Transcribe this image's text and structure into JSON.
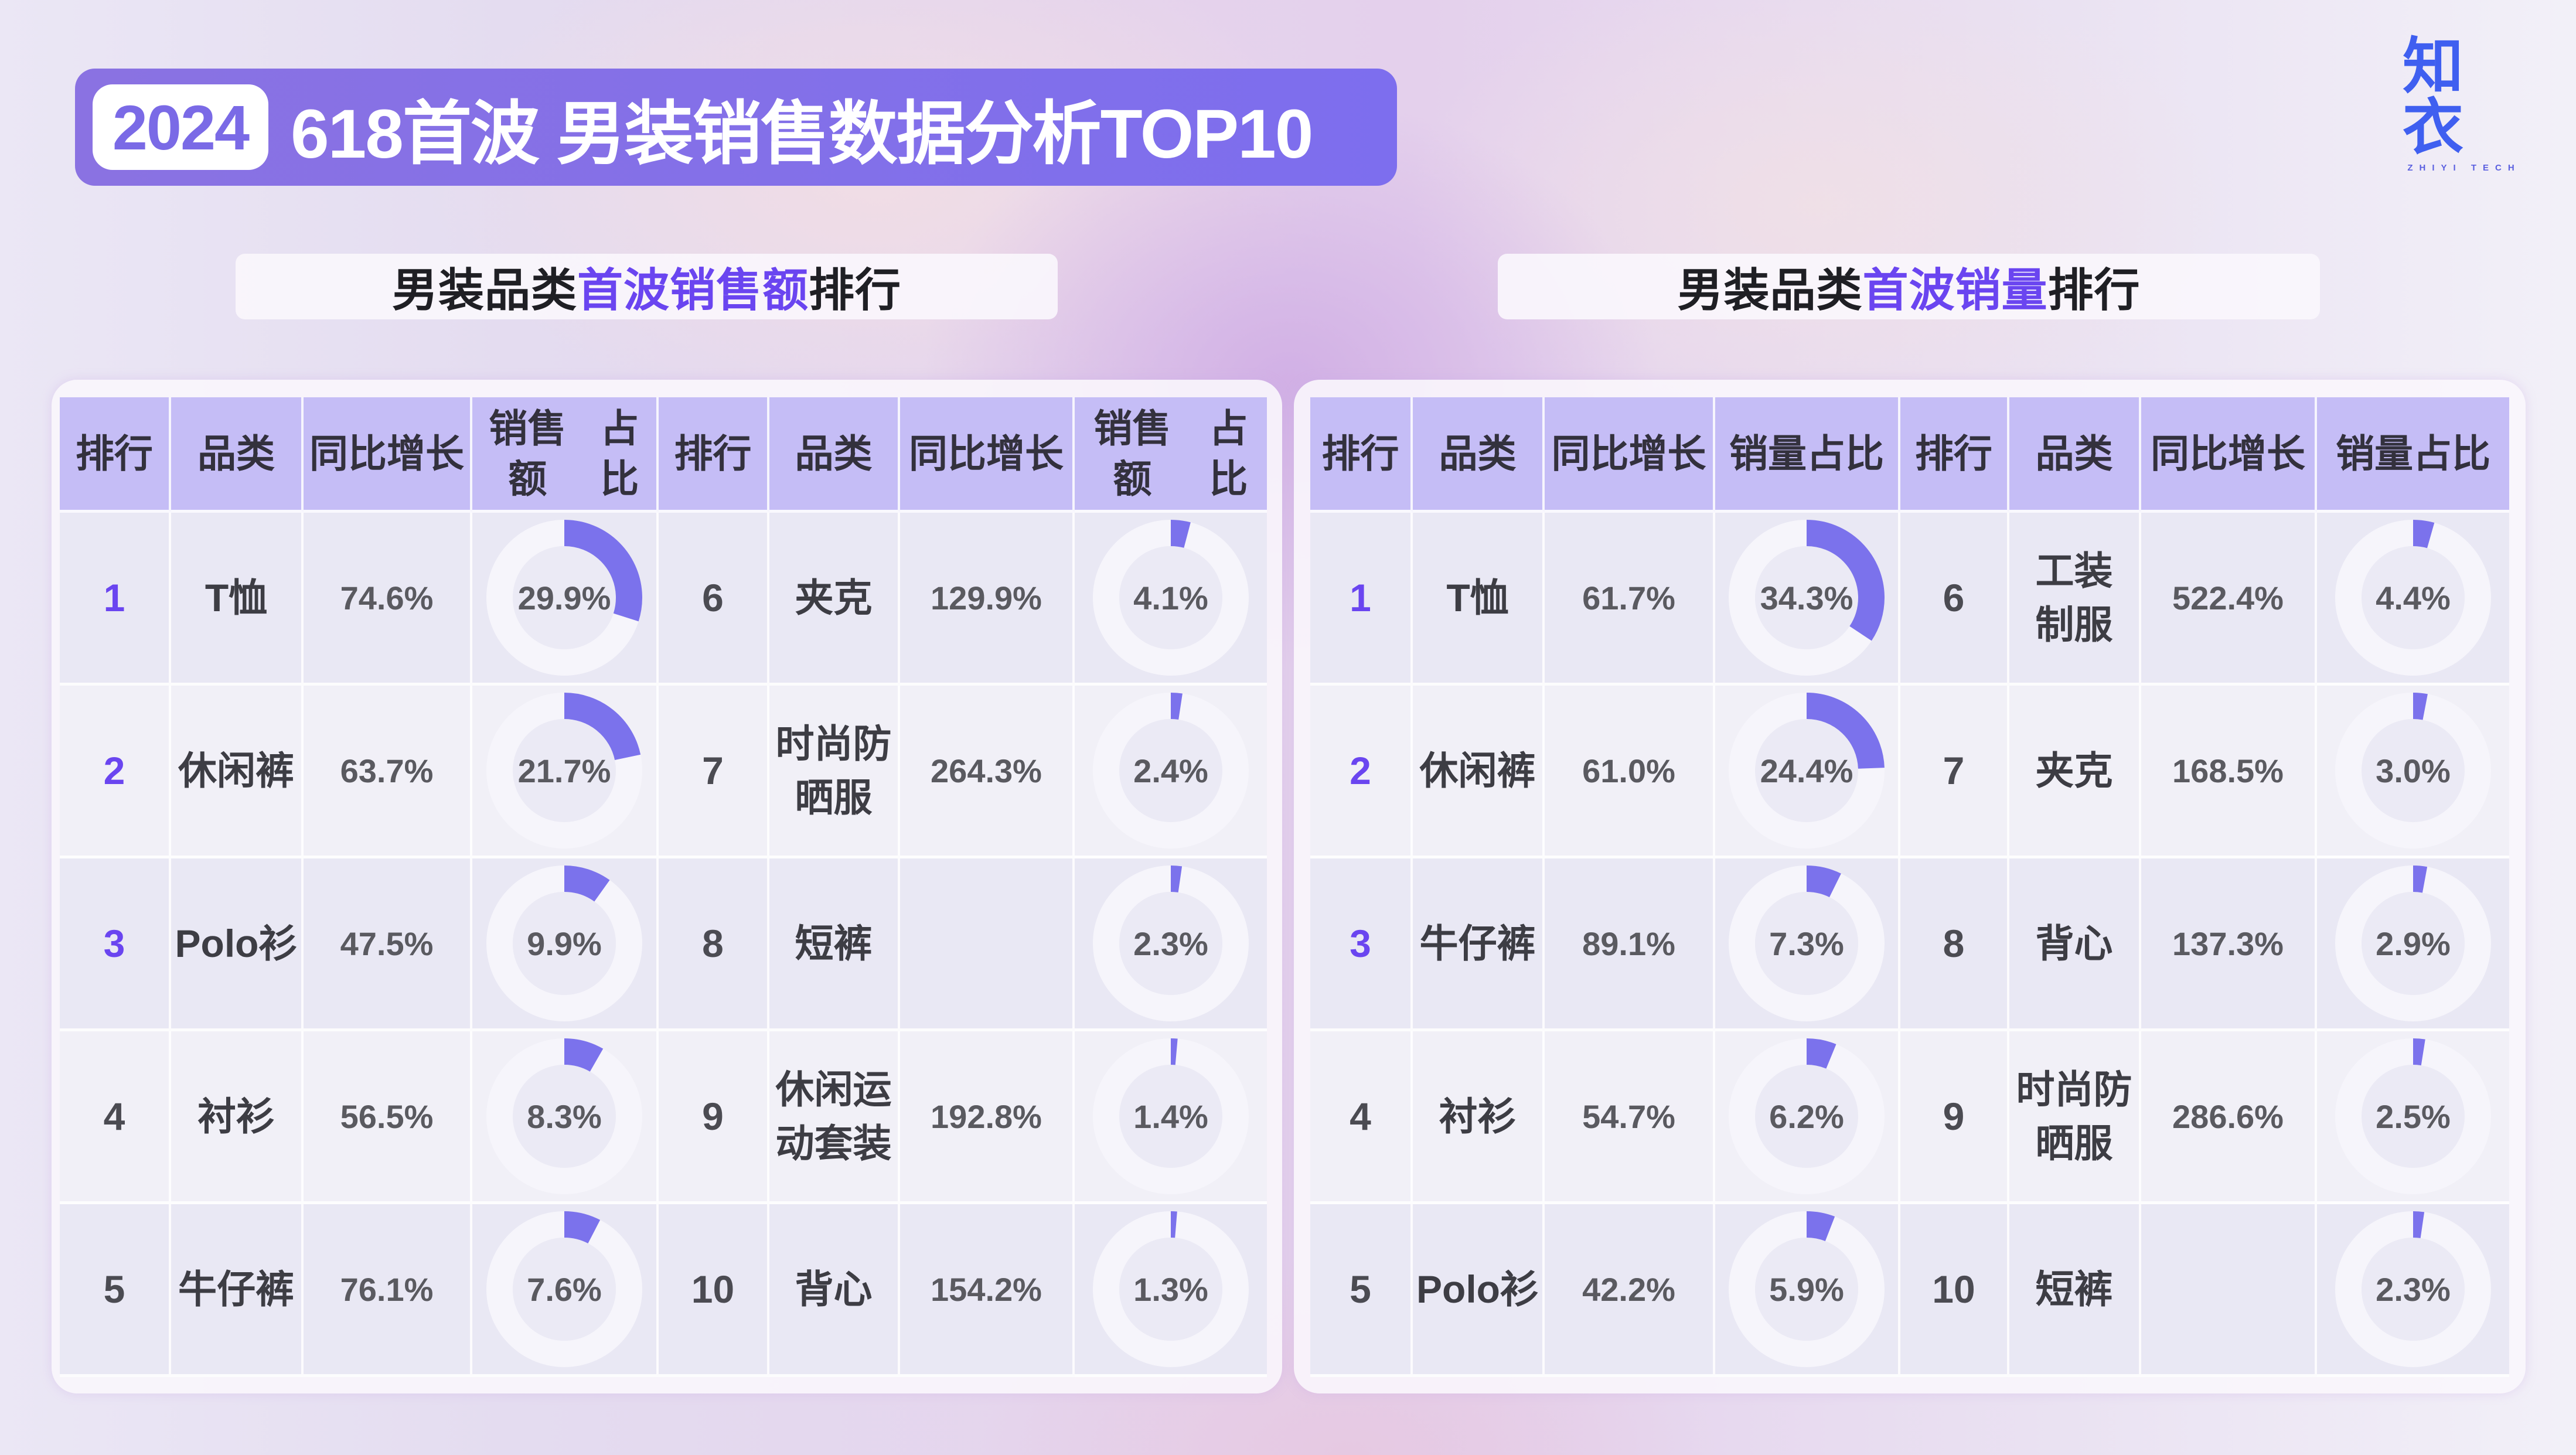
{
  "header": {
    "year_badge": "2024",
    "title": "618首波 男装销售数据分析TOP10"
  },
  "logo": {
    "mark": "知衣",
    "sub": "ZHIYI TECH"
  },
  "colors": {
    "accent": "#7d6eee",
    "highlight_text": "#6a45f0",
    "header_cell": "#c5bdf6",
    "donut_fill": "#7b72ec",
    "donut_track": "#f6f5fb",
    "logo": "#3f5ff0"
  },
  "sections": {
    "sales_amount": {
      "heading_prefix": "男装品类",
      "heading_highlight": "首波销售额",
      "heading_suffix": "排行",
      "columns": [
        "排行",
        "品类",
        "同比增长",
        "销售额占比",
        "排行",
        "品类",
        "同比增长",
        "销售额占比"
      ],
      "share_col_label_line1": "销售额",
      "share_col_label_line2": "占比",
      "rows": [
        {
          "left": {
            "rank": "1",
            "category": "T恤",
            "yoy": "74.6%",
            "share": "29.9%",
            "share_value": 29.9
          },
          "right": {
            "rank": "6",
            "category": "夹克",
            "yoy": "129.9%",
            "share": "4.1%",
            "share_value": 4.1
          }
        },
        {
          "left": {
            "rank": "2",
            "category": "休闲裤",
            "yoy": "63.7%",
            "share": "21.7%",
            "share_value": 21.7
          },
          "right": {
            "rank": "7",
            "category": "时尚防\n晒服",
            "yoy": "264.3%",
            "share": "2.4%",
            "share_value": 2.4
          }
        },
        {
          "left": {
            "rank": "3",
            "category": "Polo衫",
            "yoy": "47.5%",
            "share": "9.9%",
            "share_value": 9.9
          },
          "right": {
            "rank": "8",
            "category": "短裤",
            "yoy": "",
            "share": "2.3%",
            "share_value": 2.3
          }
        },
        {
          "left": {
            "rank": "4",
            "category": "衬衫",
            "yoy": "56.5%",
            "share": "8.3%",
            "share_value": 8.3
          },
          "right": {
            "rank": "9",
            "category": "休闲运\n动套装",
            "yoy": "192.8%",
            "share": "1.4%",
            "share_value": 1.4
          }
        },
        {
          "left": {
            "rank": "5",
            "category": "牛仔裤",
            "yoy": "76.1%",
            "share": "7.6%",
            "share_value": 7.6
          },
          "right": {
            "rank": "10",
            "category": "背心",
            "yoy": "154.2%",
            "share": "1.3%",
            "share_value": 1.3
          }
        }
      ]
    },
    "sales_volume": {
      "heading_prefix": "男装品类",
      "heading_highlight": "首波销量",
      "heading_suffix": "排行",
      "columns": [
        "排行",
        "品类",
        "同比增长",
        "销量占比",
        "排行",
        "品类",
        "同比增长",
        "销量占比"
      ],
      "rows": [
        {
          "left": {
            "rank": "1",
            "category": "T恤",
            "yoy": "61.7%",
            "share": "34.3%",
            "share_value": 34.3
          },
          "right": {
            "rank": "6",
            "category": "工装\n制服",
            "yoy": "522.4%",
            "share": "4.4%",
            "share_value": 4.4
          }
        },
        {
          "left": {
            "rank": "2",
            "category": "休闲裤",
            "yoy": "61.0%",
            "share": "24.4%",
            "share_value": 24.4
          },
          "right": {
            "rank": "7",
            "category": "夹克",
            "yoy": "168.5%",
            "share": "3.0%",
            "share_value": 3.0
          }
        },
        {
          "left": {
            "rank": "3",
            "category": "牛仔裤",
            "yoy": "89.1%",
            "share": "7.3%",
            "share_value": 7.3
          },
          "right": {
            "rank": "8",
            "category": "背心",
            "yoy": "137.3%",
            "share": "2.9%",
            "share_value": 2.9
          }
        },
        {
          "left": {
            "rank": "4",
            "category": "衬衫",
            "yoy": "54.7%",
            "share": "6.2%",
            "share_value": 6.2
          },
          "right": {
            "rank": "9",
            "category": "时尚防\n晒服",
            "yoy": "286.6%",
            "share": "2.5%",
            "share_value": 2.5
          }
        },
        {
          "left": {
            "rank": "5",
            "category": "Polo衫",
            "yoy": "42.2%",
            "share": "5.9%",
            "share_value": 5.9
          },
          "right": {
            "rank": "10",
            "category": "短裤",
            "yoy": "",
            "share": "2.3%",
            "share_value": 2.3
          }
        }
      ]
    }
  },
  "chart_data": [
    {
      "type": "table",
      "title": "男装品类首波销售额排行",
      "columns": [
        "排行",
        "品类",
        "同比增长",
        "销售额占比"
      ],
      "rows": [
        [
          "1",
          "T恤",
          "74.6%",
          "29.9%"
        ],
        [
          "2",
          "休闲裤",
          "63.7%",
          "21.7%"
        ],
        [
          "3",
          "Polo衫",
          "47.5%",
          "9.9%"
        ],
        [
          "4",
          "衬衫",
          "56.5%",
          "8.3%"
        ],
        [
          "5",
          "牛仔裤",
          "76.1%",
          "7.6%"
        ],
        [
          "6",
          "夹克",
          "129.9%",
          "4.1%"
        ],
        [
          "7",
          "时尚防晒服",
          "264.3%",
          "2.4%"
        ],
        [
          "8",
          "短裤",
          "",
          "2.3%"
        ],
        [
          "9",
          "休闲运动套装",
          "192.8%",
          "1.4%"
        ],
        [
          "10",
          "背心",
          "154.2%",
          "1.3%"
        ]
      ],
      "series": [
        {
          "name": "同比增长(%)",
          "values": [
            74.6,
            63.7,
            47.5,
            56.5,
            76.1,
            129.9,
            264.3,
            null,
            192.8,
            154.2
          ]
        },
        {
          "name": "销售额占比(%)",
          "values": [
            29.9,
            21.7,
            9.9,
            8.3,
            7.6,
            4.1,
            2.4,
            2.3,
            1.4,
            1.3
          ]
        }
      ],
      "categories": [
        "T恤",
        "休闲裤",
        "Polo衫",
        "衬衫",
        "牛仔裤",
        "夹克",
        "时尚防晒服",
        "短裤",
        "休闲运动套装",
        "背心"
      ]
    },
    {
      "type": "table",
      "title": "男装品类首波销量排行",
      "columns": [
        "排行",
        "品类",
        "同比增长",
        "销量占比"
      ],
      "rows": [
        [
          "1",
          "T恤",
          "61.7%",
          "34.3%"
        ],
        [
          "2",
          "休闲裤",
          "61.0%",
          "24.4%"
        ],
        [
          "3",
          "牛仔裤",
          "89.1%",
          "7.3%"
        ],
        [
          "4",
          "衬衫",
          "54.7%",
          "6.2%"
        ],
        [
          "5",
          "Polo衫",
          "42.2%",
          "5.9%"
        ],
        [
          "6",
          "工装制服",
          "522.4%",
          "4.4%"
        ],
        [
          "7",
          "夹克",
          "168.5%",
          "3.0%"
        ],
        [
          "8",
          "背心",
          "137.3%",
          "2.9%"
        ],
        [
          "9",
          "时尚防晒服",
          "286.6%",
          "2.5%"
        ],
        [
          "10",
          "短裤",
          "",
          "2.3%"
        ]
      ],
      "series": [
        {
          "name": "同比增长(%)",
          "values": [
            61.7,
            61.0,
            89.1,
            54.7,
            42.2,
            522.4,
            168.5,
            137.3,
            286.6,
            null
          ]
        },
        {
          "name": "销量占比(%)",
          "values": [
            34.3,
            24.4,
            7.3,
            6.2,
            5.9,
            4.4,
            3.0,
            2.9,
            2.5,
            2.3
          ]
        }
      ],
      "categories": [
        "T恤",
        "休闲裤",
        "牛仔裤",
        "衬衫",
        "Polo衫",
        "工装制服",
        "夹克",
        "背心",
        "时尚防晒服",
        "短裤"
      ]
    }
  ]
}
